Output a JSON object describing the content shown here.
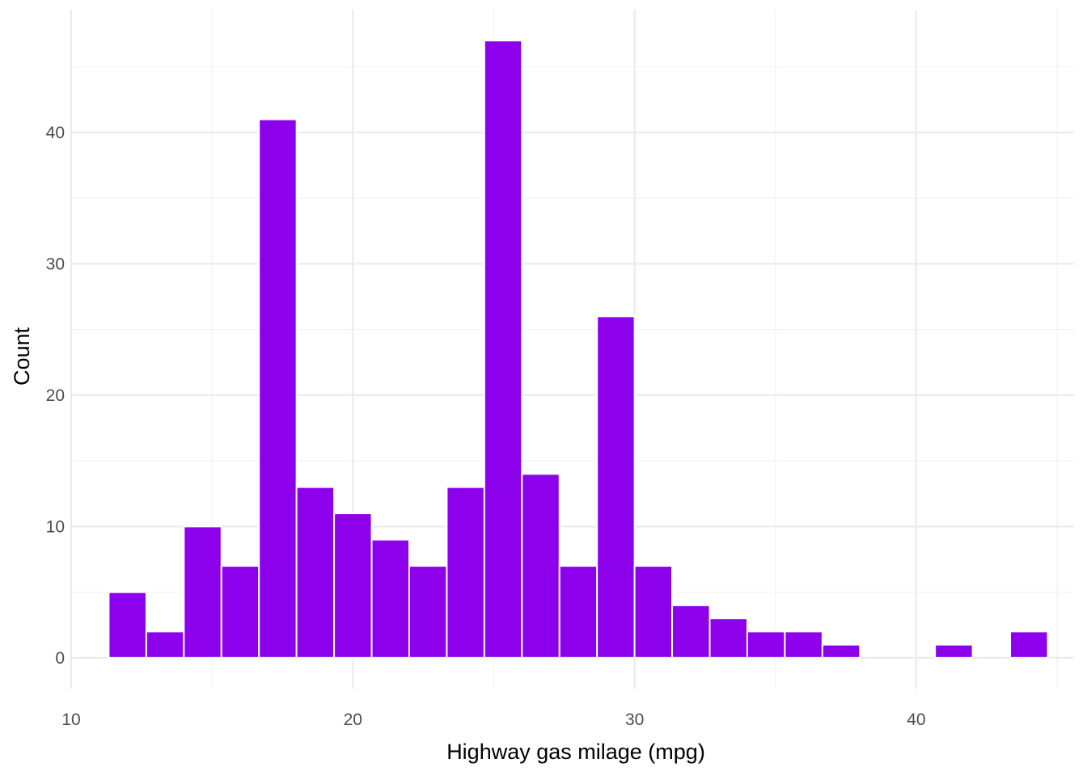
{
  "chart_data": {
    "type": "bar",
    "subtype": "histogram",
    "title": "",
    "xlabel": "Highway gas milage (mpg)",
    "ylabel": "Count",
    "xlim": [
      10.0,
      45.6
    ],
    "ylim": [
      -2.35,
      49.35
    ],
    "x_ticks": [
      "10",
      "20",
      "30",
      "40"
    ],
    "y_ticks": [
      "0",
      "10",
      "20",
      "30",
      "40"
    ],
    "grid": true,
    "legend": "none",
    "bin_width": 1.3333,
    "bin_start": 11.3333,
    "bins": [
      {
        "x0": 11.3333,
        "x1": 12.6667,
        "count": 5
      },
      {
        "x0": 12.6667,
        "x1": 14.0,
        "count": 2
      },
      {
        "x0": 14.0,
        "x1": 15.3333,
        "count": 10
      },
      {
        "x0": 15.3333,
        "x1": 16.6667,
        "count": 7
      },
      {
        "x0": 16.6667,
        "x1": 18.0,
        "count": 41
      },
      {
        "x0": 18.0,
        "x1": 19.3333,
        "count": 13
      },
      {
        "x0": 19.3333,
        "x1": 20.6667,
        "count": 11
      },
      {
        "x0": 20.6667,
        "x1": 22.0,
        "count": 9
      },
      {
        "x0": 22.0,
        "x1": 23.3333,
        "count": 7
      },
      {
        "x0": 23.3333,
        "x1": 24.6667,
        "count": 13
      },
      {
        "x0": 24.6667,
        "x1": 26.0,
        "count": 47
      },
      {
        "x0": 26.0,
        "x1": 27.3333,
        "count": 14
      },
      {
        "x0": 27.3333,
        "x1": 28.6667,
        "count": 7
      },
      {
        "x0": 28.6667,
        "x1": 30.0,
        "count": 26
      },
      {
        "x0": 30.0,
        "x1": 31.3333,
        "count": 7
      },
      {
        "x0": 31.3333,
        "x1": 32.6667,
        "count": 4
      },
      {
        "x0": 32.6667,
        "x1": 34.0,
        "count": 3
      },
      {
        "x0": 34.0,
        "x1": 35.3333,
        "count": 2
      },
      {
        "x0": 35.3333,
        "x1": 36.6667,
        "count": 2
      },
      {
        "x0": 36.6667,
        "x1": 38.0,
        "count": 1
      },
      {
        "x0": 38.0,
        "x1": 39.3333,
        "count": 0
      },
      {
        "x0": 39.3333,
        "x1": 40.6667,
        "count": 0
      },
      {
        "x0": 40.6667,
        "x1": 42.0,
        "count": 1
      },
      {
        "x0": 42.0,
        "x1": 43.3333,
        "count": 0
      },
      {
        "x0": 43.3333,
        "x1": 44.6667,
        "count": 2
      }
    ],
    "colors": {
      "bar_fill": "#8c00ec",
      "bar_outline": "#ffffff",
      "grid_major": "#ebebeb",
      "grid_minor": "#f2f2f2",
      "tick_text": "#4d4d4d",
      "title_text": "#000000"
    }
  }
}
